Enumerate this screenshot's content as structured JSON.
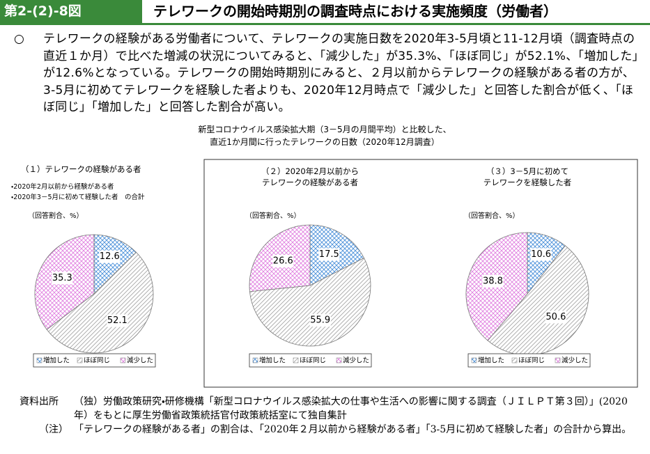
{
  "header": {
    "figure_no": "第2-(2)-8図",
    "title": "テレワークの開始時期別の調査時点における実施頻度（労働者）"
  },
  "summary": {
    "bullet": "○",
    "text": "テレワークの経験がある労働者について、テレワークの実施日数を2020年3‐5月頃と11‐12月頃（調査時点の直近１か月）で比べた増減の状況についてみると、「減少した」が35.3%、「ほぼ同じ」が52.1%、「増加した」が12.6%となっている。テレワークの開始時期別にみると、２月以前からテレワークの経験がある者の方が、3‐5月に初めてテレワークを経験した者よりも、2020年12月時点で「減少した」と回答した割合が低く、「ほぼ同じ」「増加した」と回答した割合が高い。"
  },
  "charts_title": [
    "新型コロナウイルス感染拡大期（3－5月の月間平均）と比較した、",
    "直近1か月間に行ったテレワークの日数（2020年12月調査）"
  ],
  "chart_data": [
    {
      "type": "pie",
      "title": [
        "（１）テレワークの経験がある者"
      ],
      "notes": [
        "・2020年2月以前から経験がある者",
        "・2020年3－5月に初めて経験した者　の合計"
      ],
      "unit": "（回答割合、%）",
      "categories": [
        "増加した",
        "ほぼ同じ",
        "減少した"
      ],
      "values": [
        12.6,
        52.1,
        35.3
      ],
      "colors": [
        "#4a90d9",
        "#a6a6a6",
        "#e080e0"
      ]
    },
    {
      "type": "pie",
      "title": [
        "（２）2020年2月以前から",
        "テレワークの経験がある者"
      ],
      "unit": "（回答割合、%）",
      "categories": [
        "増加した",
        "ほぼ同じ",
        "減少した"
      ],
      "values": [
        17.5,
        55.9,
        26.6
      ],
      "colors": [
        "#4a90d9",
        "#a6a6a6",
        "#e080e0"
      ]
    },
    {
      "type": "pie",
      "title": [
        "（３）3－5月に初めて",
        "テレワークを経験した者"
      ],
      "unit": "（回答割合、%）",
      "categories": [
        "増加した",
        "ほぼ同じ",
        "減少した"
      ],
      "values": [
        10.6,
        50.6,
        38.8
      ],
      "colors": [
        "#4a90d9",
        "#a6a6a6",
        "#e080e0"
      ]
    }
  ],
  "source": {
    "label": "資料出所",
    "text": "（独）労働政策研究・研修機構「新型コロナウイルス感染拡大の仕事や生活への影響に関する調査（ＪＩＬＰＴ第３回）」(2020年）をもとに厚生労働省政策統括官付政策統括室にて独自集計"
  },
  "note": {
    "label": "（注）",
    "text": "「テレワークの経験がある者」の割合は、「2020年２月以前から経験がある者」「3‐5月に初めて経験した者」の合計から算出。"
  }
}
